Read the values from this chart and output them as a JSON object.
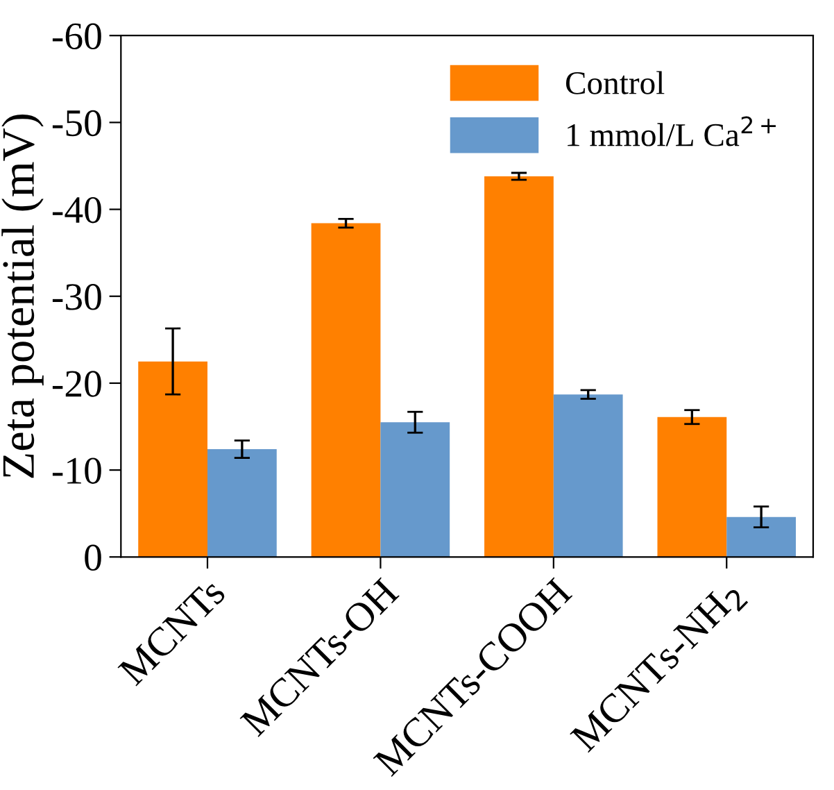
{
  "chart_data": {
    "type": "bar",
    "ylabel": "Zeta potential (mV)",
    "categories": [
      "MCNTs",
      "MCNTs-OH",
      "MCNTs-COOH",
      "MCNTs-NH$_{2}$"
    ],
    "series": [
      {
        "name": "Control",
        "color": "#ff8000",
        "values": [
          -22.5,
          -38.4,
          -43.8,
          -16.1
        ],
        "errors": [
          3.8,
          0.5,
          0.4,
          0.8
        ]
      },
      {
        "name": "1 mmol/L Ca$^{2+}$",
        "color": "#6699cc",
        "values": [
          -12.4,
          -15.5,
          -18.7,
          -4.6
        ],
        "errors": [
          1.0,
          1.2,
          0.5,
          1.2
        ]
      }
    ],
    "ylim": [
      0,
      -60
    ],
    "yticks": [
      0,
      -10,
      -20,
      -30,
      -40,
      -50,
      -60
    ],
    "legend": "top right",
    "grid": false
  }
}
